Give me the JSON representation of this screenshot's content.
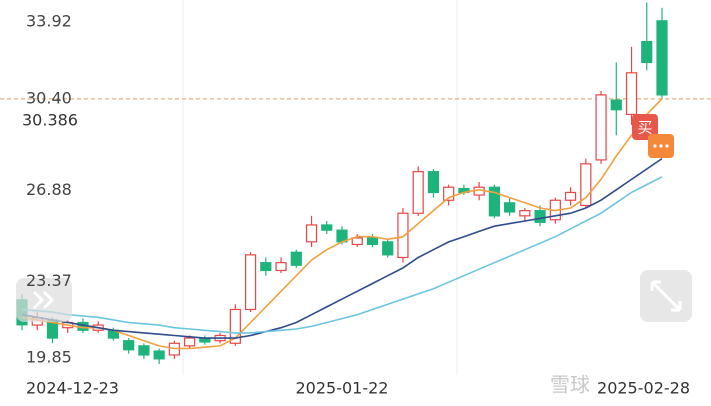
{
  "chart_data": {
    "type": "candlestick",
    "categories": [
      "2024-12-23",
      null,
      null,
      null,
      null,
      null,
      null,
      null,
      null,
      null,
      null,
      null,
      null,
      null,
      null,
      null,
      null,
      null,
      null,
      null,
      null,
      "2025-01-22",
      null,
      null,
      null,
      null,
      null,
      null,
      null,
      null,
      null,
      null,
      null,
      null,
      null,
      null,
      null,
      null,
      null,
      null,
      null,
      null,
      "2025-02-28"
    ],
    "open": [
      22.67,
      21.7,
      21.9,
      21.6,
      21.8,
      21.5,
      21.5,
      21.1,
      20.9,
      20.7,
      20.55,
      20.9,
      21.2,
      21.1,
      21.0,
      22.3,
      24.1,
      23.8,
      24.5,
      24.9,
      25.55,
      25.35,
      24.8,
      25.05,
      24.9,
      24.3,
      26.0,
      27.6,
      26.5,
      26.95,
      26.7,
      27.0,
      26.4,
      25.9,
      26.1,
      25.75,
      26.5,
      26.3,
      28.05,
      30.35,
      29.8,
      32.6,
      33.4
    ],
    "high": [
      22.9,
      22.2,
      22.0,
      21.9,
      21.95,
      21.85,
      21.6,
      21.2,
      21.0,
      20.8,
      21.1,
      21.3,
      21.3,
      21.4,
      22.5,
      24.5,
      24.3,
      24.3,
      24.6,
      25.9,
      25.7,
      25.5,
      25.2,
      25.2,
      25.0,
      26.2,
      27.8,
      27.7,
      27.1,
      27.1,
      27.2,
      27.1,
      26.6,
      26.2,
      26.3,
      26.6,
      27.0,
      28.1,
      30.7,
      31.8,
      32.4,
      34.1,
      33.9
    ],
    "low": [
      21.5,
      21.5,
      21.0,
      21.4,
      21.4,
      21.4,
      21.1,
      20.6,
      20.4,
      20.2,
      20.4,
      20.8,
      20.95,
      21.0,
      20.9,
      22.2,
      23.6,
      23.7,
      23.9,
      24.7,
      25.2,
      24.8,
      24.7,
      24.7,
      24.3,
      24.1,
      25.9,
      26.6,
      26.3,
      26.7,
      26.5,
      25.8,
      25.9,
      25.7,
      25.5,
      25.6,
      26.3,
      26.2,
      27.9,
      29.0,
      29.4,
      31.5,
      30.4
    ],
    "close": [
      21.71,
      21.98,
      21.2,
      21.8,
      21.5,
      21.7,
      21.2,
      20.75,
      20.55,
      20.4,
      21.0,
      21.2,
      21.05,
      21.3,
      22.3,
      24.4,
      23.8,
      24.1,
      24.0,
      25.55,
      25.35,
      24.9,
      25.05,
      24.8,
      24.4,
      26.0,
      27.6,
      26.8,
      27.0,
      26.8,
      27.0,
      25.9,
      26.05,
      26.1,
      25.65,
      26.5,
      26.8,
      27.9,
      30.55,
      29.98,
      31.4,
      31.8,
      30.55
    ],
    "up_color": "#e84545",
    "down_color": "#1fb37c",
    "series": [
      {
        "color": "#f0a040",
        "values": [
          22.0,
          21.9,
          21.8,
          21.7,
          21.6,
          21.6,
          21.5,
          21.3,
          21.1,
          20.9,
          20.8,
          20.8,
          20.85,
          20.9,
          21.2,
          21.8,
          22.4,
          23.0,
          23.6,
          24.2,
          24.6,
          24.9,
          25.1,
          25.1,
          25.0,
          25.1,
          25.6,
          26.1,
          26.6,
          26.8,
          26.9,
          26.8,
          26.6,
          26.4,
          26.2,
          26.1,
          26.2,
          26.6,
          27.3,
          28.2,
          29.0,
          29.8,
          30.4
        ]
      },
      {
        "color": "#2f4c8c",
        "values": [
          22.1,
          22.0,
          21.9,
          21.8,
          21.7,
          21.6,
          21.5,
          21.45,
          21.4,
          21.35,
          21.3,
          21.25,
          21.2,
          21.2,
          21.2,
          21.3,
          21.45,
          21.6,
          21.8,
          22.1,
          22.4,
          22.7,
          23.0,
          23.3,
          23.6,
          23.9,
          24.3,
          24.6,
          24.9,
          25.1,
          25.3,
          25.5,
          25.6,
          25.7,
          25.8,
          25.9,
          26.0,
          26.2,
          26.5,
          26.9,
          27.3,
          27.7,
          28.1
        ]
      },
      {
        "color": "#6cc5e0",
        "values": [
          22.3,
          22.25,
          22.2,
          22.1,
          22.05,
          22.0,
          21.9,
          21.8,
          21.75,
          21.7,
          21.6,
          21.55,
          21.5,
          21.45,
          21.4,
          21.4,
          21.45,
          21.5,
          21.55,
          21.65,
          21.8,
          21.95,
          22.1,
          22.3,
          22.5,
          22.7,
          22.9,
          23.1,
          23.35,
          23.6,
          23.85,
          24.1,
          24.35,
          24.6,
          24.85,
          25.1,
          25.4,
          25.7,
          26.0,
          26.4,
          26.8,
          27.1,
          27.4
        ]
      }
    ],
    "ylim": [
      19.78,
      34.2
    ],
    "yticks": [
      33.92,
      {
        "value": 30.4,
        "label": "30.40"
      },
      26.88,
      23.37,
      19.85
    ],
    "price_line": 30.4,
    "price_line_color": "#e0a060",
    "last_price": 30.386,
    "buy_marker": "买",
    "watermark": "雪球"
  }
}
